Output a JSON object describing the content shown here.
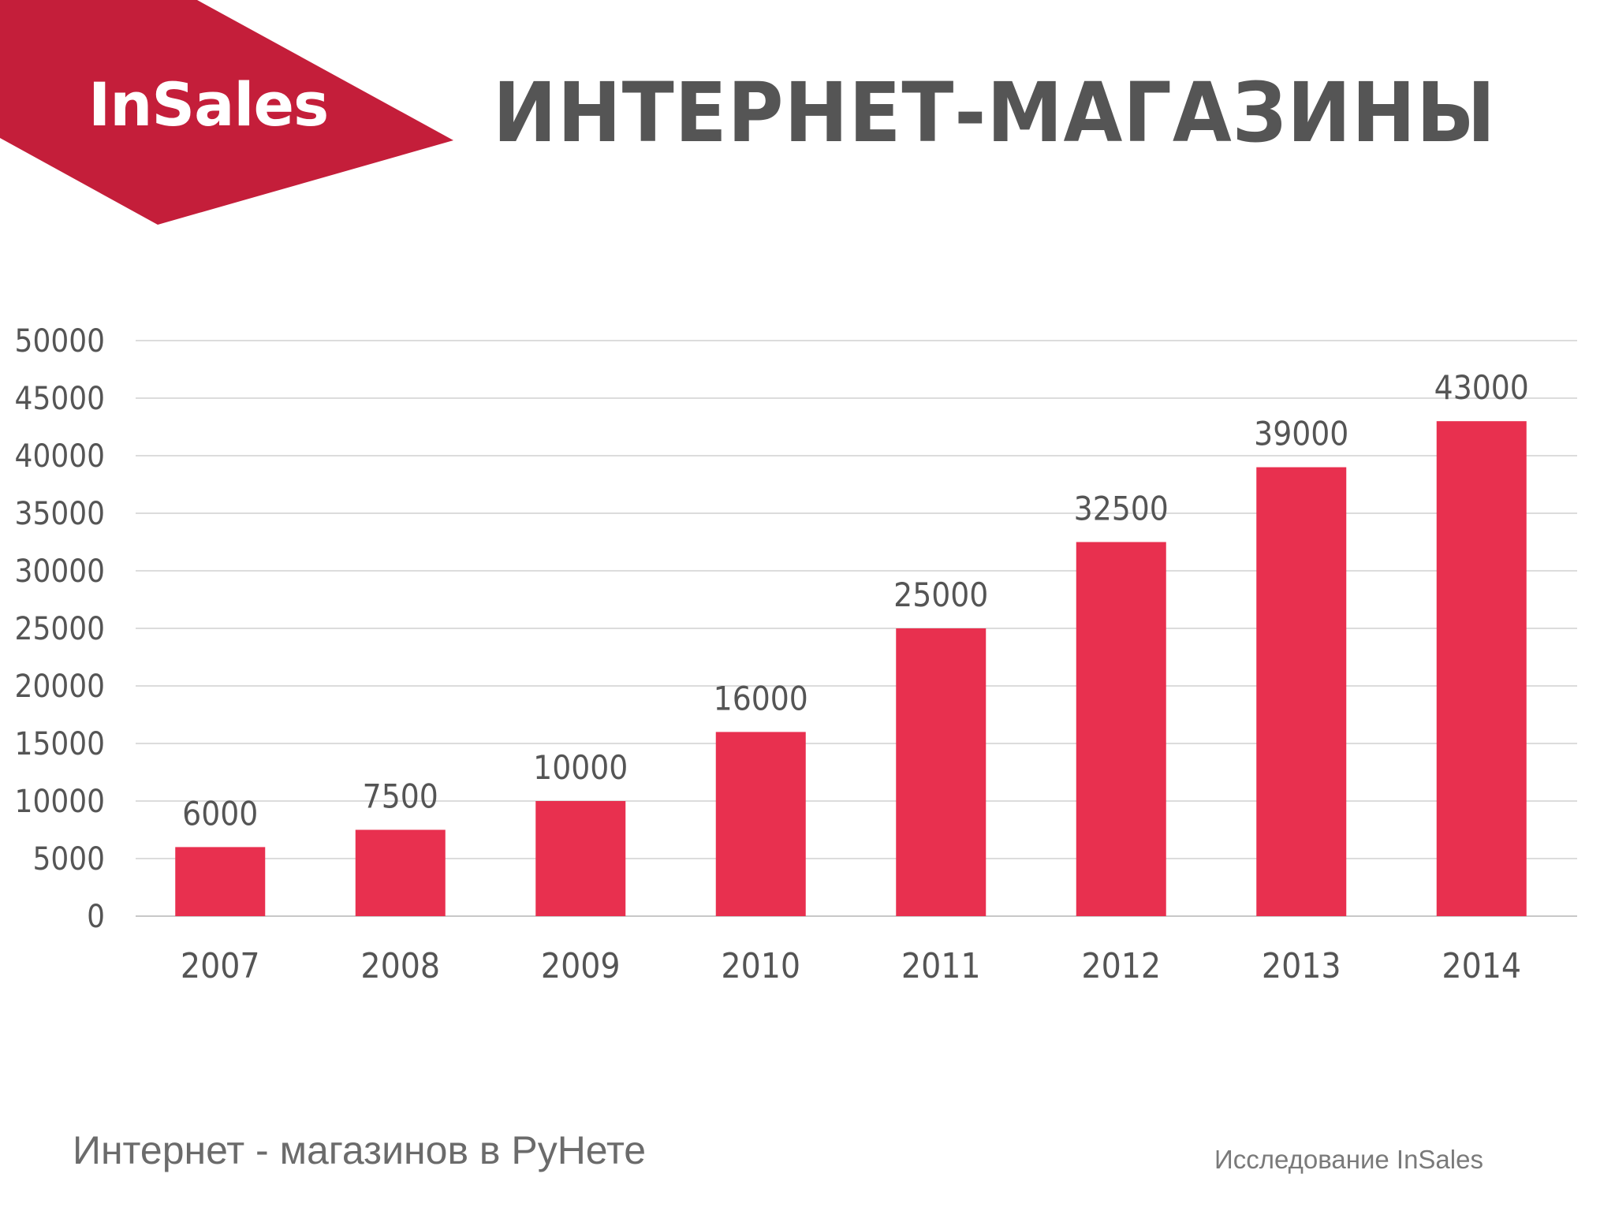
{
  "header": {
    "logo_text": "InSales",
    "title": "ИНТЕРНЕТ-МАГАЗИНЫ",
    "brand_color": "#c41e3a"
  },
  "chart_data": {
    "type": "bar",
    "categories": [
      "2007",
      "2008",
      "2009",
      "2010",
      "2011",
      "2012",
      "2013",
      "2014"
    ],
    "values": [
      6000,
      7500,
      10000,
      16000,
      25000,
      32500,
      39000,
      43000
    ],
    "data_labels": [
      "6000",
      "7500",
      "10000",
      "16000",
      "25000",
      "32500",
      "39000",
      "43000"
    ],
    "yticks": [
      0,
      5000,
      10000,
      15000,
      20000,
      25000,
      30000,
      35000,
      40000,
      45000,
      50000
    ],
    "ylim": [
      0,
      50000
    ],
    "grid": true,
    "legend": "none",
    "bar_color": "#e8304f",
    "grid_color": "#dcdcdc"
  },
  "footer": {
    "caption": "Интернет - магазинов в РуНете",
    "source": "Исследование InSales"
  }
}
